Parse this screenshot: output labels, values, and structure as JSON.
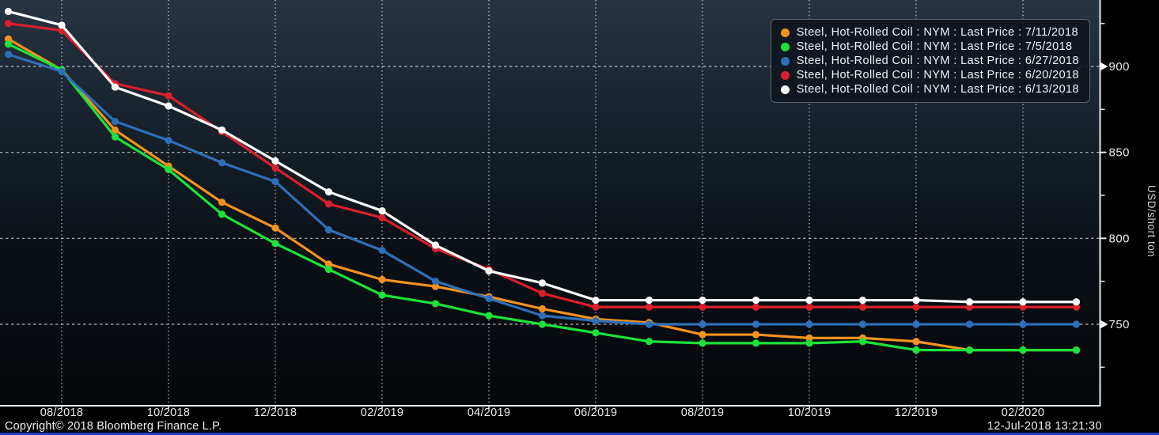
{
  "chart_data": {
    "type": "line",
    "title": "",
    "ylabel": "USD/short ton",
    "x": [
      "07/2018",
      "08/2018",
      "09/2018",
      "10/2018",
      "11/2018",
      "12/2018",
      "01/2019",
      "02/2019",
      "03/2019",
      "04/2019",
      "05/2019",
      "06/2019",
      "07/2019",
      "08/2019",
      "09/2019",
      "10/2019",
      "11/2019",
      "12/2019",
      "01/2020",
      "02/2020",
      "03/2020"
    ],
    "x_tick_labels": [
      "08/2018",
      "10/2018",
      "12/2018",
      "02/2019",
      "04/2019",
      "06/2019",
      "08/2019",
      "10/2019",
      "12/2019",
      "02/2020"
    ],
    "y_ticks_major": [
      750,
      800,
      850,
      900
    ],
    "y_ticks_minor": [
      725,
      775,
      825,
      875,
      925
    ],
    "ylim": [
      706,
      938
    ],
    "grid": "dashed white, both axes",
    "legend_position": "top-right",
    "axis_arrow_values": [
      900,
      750
    ],
    "marker": "circle",
    "series": [
      {
        "name": "Steel, Hot-Rolled Coil : NYM : Last Price : 7/11/2018",
        "color": "#f5921e",
        "values": [
          916,
          898,
          863,
          842,
          821,
          806,
          785,
          776,
          772,
          766,
          759,
          753,
          751,
          744,
          744,
          742,
          742,
          740,
          735,
          735,
          735
        ]
      },
      {
        "name": "Steel, Hot-Rolled Coil : NYM : Last Price : 7/5/2018",
        "color": "#1ce23a",
        "values": [
          913,
          898,
          859,
          840,
          814,
          797,
          782,
          767,
          762,
          755,
          750,
          745,
          740,
          739,
          739,
          739,
          740,
          735,
          735,
          735,
          735
        ]
      },
      {
        "name": "Steel, Hot-Rolled Coil : NYM : Last Price : 6/27/2018",
        "color": "#2e6fba",
        "values": [
          907,
          897,
          868,
          857,
          844,
          833,
          805,
          793,
          775,
          765,
          755,
          752,
          750,
          750,
          750,
          750,
          750,
          750,
          750,
          750,
          750
        ]
      },
      {
        "name": "Steel, Hot-Rolled Coil : NYM : Last Price : 6/20/2018",
        "color": "#da202c",
        "values": [
          925,
          921,
          890,
          883,
          862,
          841,
          820,
          812,
          794,
          782,
          768,
          760,
          760,
          760,
          760,
          760,
          760,
          760,
          760,
          760,
          760
        ]
      },
      {
        "name": "Steel, Hot-Rolled Coil : NYM : Last Price : 6/13/2018",
        "color": "#ffffff",
        "values": [
          932,
          924,
          888,
          877,
          863,
          845,
          827,
          816,
          796,
          781,
          774,
          764,
          764,
          764,
          764,
          764,
          764,
          764,
          763,
          763,
          763
        ]
      }
    ]
  },
  "footer": {
    "copyright": "Copyright© 2018 Bloomberg Finance L.P.",
    "timestamp": "12-Jul-2018 13:21:30"
  }
}
